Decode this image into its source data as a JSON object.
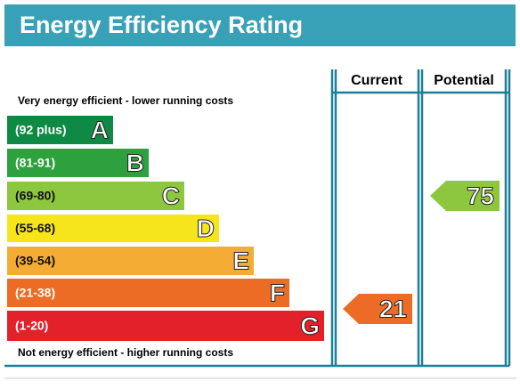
{
  "header": {
    "title": "Energy Efficiency Rating"
  },
  "columns": [
    "Current",
    "Potential"
  ],
  "top_label": "Very energy efficient - lower running costs",
  "bottom_label": "Not energy efficient - higher running costs",
  "bands": [
    {
      "range": "(92 plus)",
      "letter": "A",
      "color": "#0e8a45"
    },
    {
      "range": "(81-91)",
      "letter": "B",
      "color": "#2ea13f"
    },
    {
      "range": "(69-80)",
      "letter": "C",
      "color": "#8dc63f"
    },
    {
      "range": "(55-68)",
      "letter": "D",
      "color": "#f7e51b"
    },
    {
      "range": "(39-54)",
      "letter": "E",
      "color": "#f4ac35"
    },
    {
      "range": "(21-38)",
      "letter": "F",
      "color": "#ec6b25"
    },
    {
      "range": "(1-20)",
      "letter": "G",
      "color": "#e2212b"
    }
  ],
  "current": {
    "rating": "21",
    "color": "#ec6b25"
  },
  "potential": {
    "rating": "75",
    "color": "#8dc63f"
  }
}
